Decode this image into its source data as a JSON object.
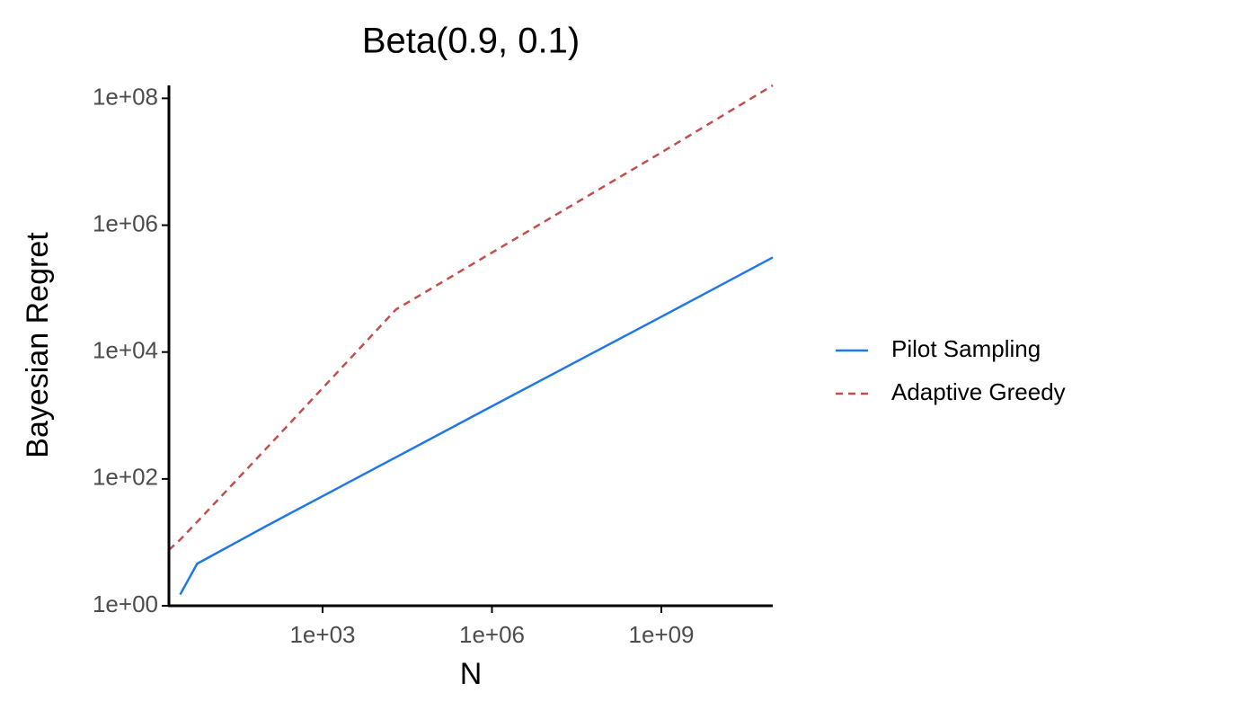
{
  "chart_data": {
    "type": "line",
    "title": "Beta(0.9, 0.1)",
    "x_label": "N",
    "y_label": "Bayesian Regret",
    "x": [
      1.9,
      3,
      6,
      100,
      20000,
      1000000,
      1000000000,
      94000000000
    ],
    "series": [
      {
        "name": "Pilot Sampling",
        "color": "#1f78e8",
        "dash": "solid",
        "values": [
          null,
          1.5,
          4.6,
          18,
          220,
          1400,
          36000,
          310000
        ]
      },
      {
        "name": "Adaptive Greedy",
        "color": "#c44e4e",
        "dash": "dashed",
        "values": [
          7.6,
          11,
          21,
          300,
          47000,
          370000,
          14000000,
          160000000
        ]
      }
    ],
    "xlim": [
      1.9,
      94000000000
    ],
    "ylim": [
      1,
      160000000
    ],
    "log_x": true,
    "log_y": true,
    "xticks": [
      {
        "value": 1000,
        "label": "1e+03"
      },
      {
        "value": 1000000,
        "label": "1e+06"
      },
      {
        "value": 1000000000,
        "label": "1e+09"
      }
    ],
    "yticks": [
      {
        "value": 1,
        "label": "1e+00"
      },
      {
        "value": 100,
        "label": "1e+02"
      },
      {
        "value": 10000,
        "label": "1e+04"
      },
      {
        "value": 1000000,
        "label": "1e+06"
      },
      {
        "value": 100000000,
        "label": "1e+08"
      }
    ],
    "legend": "right"
  }
}
